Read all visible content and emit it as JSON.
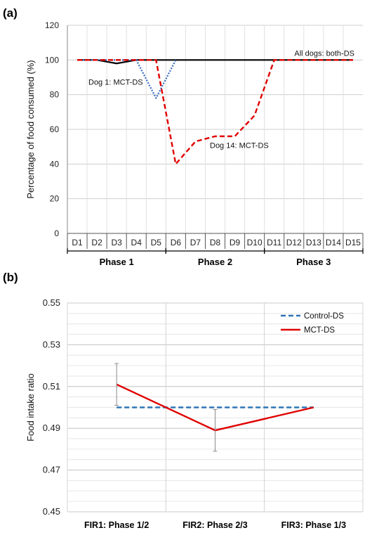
{
  "chart_data": [
    {
      "panel": "(a)",
      "type": "line",
      "ylabel": "Percentage of food consumed (%)",
      "ylim": [
        0,
        120
      ],
      "yticks": [
        0,
        20,
        40,
        60,
        80,
        100,
        120
      ],
      "grid": true,
      "categories": [
        "D1",
        "D2",
        "D3",
        "D4",
        "D5",
        "D6",
        "D7",
        "D8",
        "D9",
        "D10",
        "D11",
        "D12",
        "D13",
        "D14",
        "D15"
      ],
      "phases": [
        {
          "label": "Phase 1",
          "from": 0,
          "to": 5
        },
        {
          "label": "Phase 2",
          "from": 5,
          "to": 10
        },
        {
          "label": "Phase 3",
          "from": 10,
          "to": 15
        }
      ],
      "series": [
        {
          "name": "All dogs: both-DS",
          "color": "#000000",
          "style": "solid",
          "values": [
            100,
            100,
            98,
            100,
            100,
            100,
            100,
            100,
            100,
            100,
            100,
            100,
            100,
            100,
            100
          ]
        },
        {
          "name": "Dog 1: MCT-DS",
          "color": "#4472c4",
          "style": "dotted",
          "values": [
            100,
            100,
            100,
            100,
            78,
            100,
            null,
            null,
            null,
            null,
            null,
            null,
            null,
            null,
            null
          ]
        },
        {
          "name": "Dog 14: MCT-DS",
          "color": "#e00000",
          "style": "dashed",
          "values": [
            100,
            100,
            100,
            100,
            100,
            40,
            53,
            56,
            56,
            68,
            100,
            100,
            100,
            100,
            100
          ]
        }
      ]
    },
    {
      "panel": "(b)",
      "type": "line",
      "ylabel": "Food intake ratio",
      "ylim": [
        0.45,
        0.55
      ],
      "yticks": [
        0.45,
        0.47,
        0.49,
        0.51,
        0.53,
        0.55
      ],
      "grid": true,
      "legend_position": "top-right",
      "categories": [
        "FIR1: Phase 1/2",
        "FIR2: Phase 2/3",
        "FIR3: Phase 1/3"
      ],
      "series": [
        {
          "name": "Control-DS",
          "color": "#2e75b6",
          "style": "dashed",
          "values": [
            0.5,
            0.5,
            0.5
          ]
        },
        {
          "name": "MCT-DS",
          "color": "#e00000",
          "style": "solid",
          "values": [
            0.511,
            0.489,
            0.5
          ],
          "error": [
            0.01,
            0.01,
            null
          ]
        }
      ]
    }
  ]
}
